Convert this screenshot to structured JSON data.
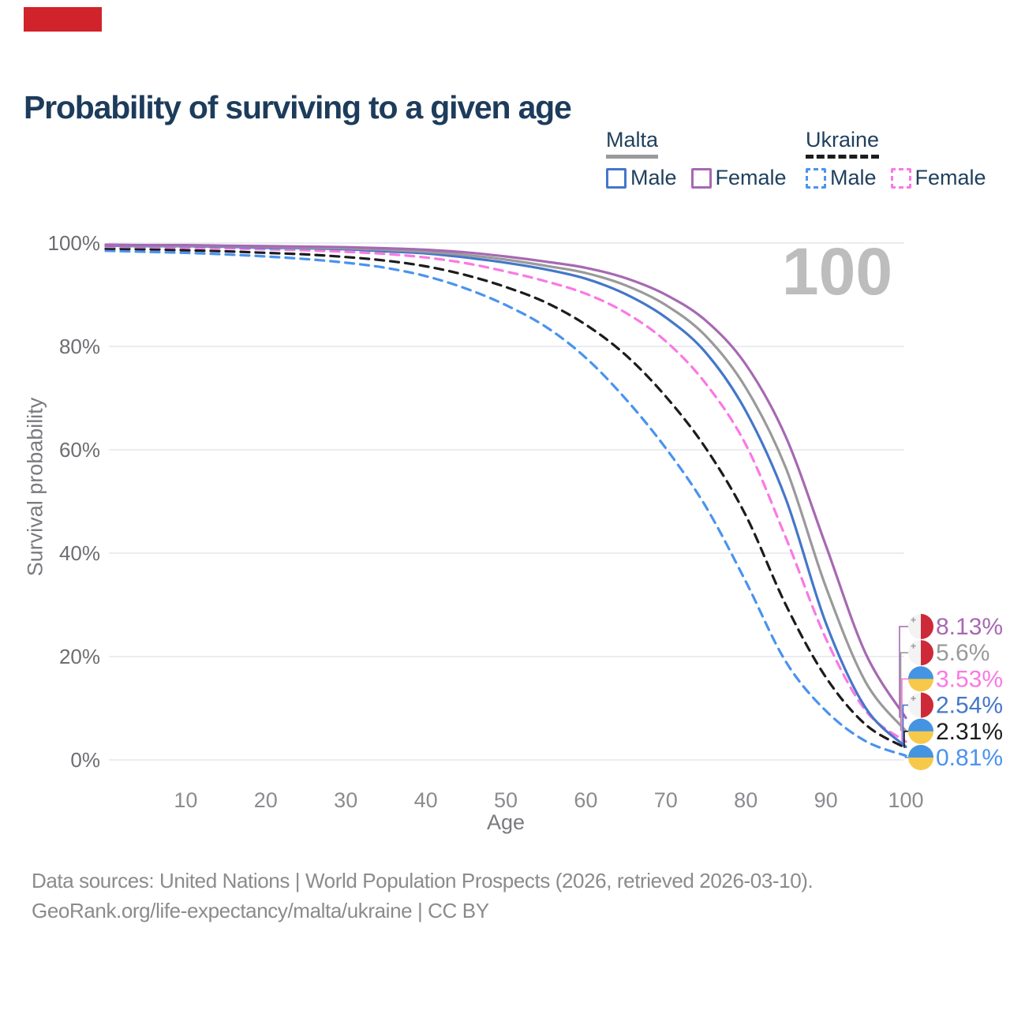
{
  "banner": {
    "color": "#d0232b"
  },
  "title": "Probability of surviving to a given age",
  "legend": {
    "groups": [
      {
        "country": "Malta",
        "line_style": "solid",
        "underline_color": "#9a9a9a",
        "items": [
          {
            "label": "Male",
            "color": "#4477c9",
            "dashed": false
          },
          {
            "label": "Female",
            "color": "#a669b2",
            "dashed": false
          }
        ]
      },
      {
        "country": "Ukraine",
        "line_style": "dashed",
        "underline_color": "#1c1c1c",
        "items": [
          {
            "label": "Male",
            "color": "#4a93ef",
            "dashed": true
          },
          {
            "label": "Female",
            "color": "#fb78e3",
            "dashed": true
          }
        ]
      }
    ]
  },
  "flags": {
    "malta": {
      "left": "#f3f3f3",
      "right": "#ce2939",
      "cross": "#a0a0a0"
    },
    "ukraine": {
      "top": "#4494e4",
      "bottom": "#f6c94a"
    }
  },
  "chart_data": {
    "type": "line",
    "title": "Probability of surviving to a given age",
    "xlabel": "Age",
    "ylabel": "Survival probability",
    "xlim": [
      0,
      100
    ],
    "ylim": [
      0,
      100
    ],
    "grid": true,
    "watermark": "100",
    "x_ticks": [
      10,
      20,
      30,
      40,
      50,
      60,
      70,
      80,
      90,
      100
    ],
    "y_ticks": [
      "0%",
      "20%",
      "40%",
      "60%",
      "80%",
      "100%"
    ],
    "x": [
      0,
      5,
      10,
      15,
      20,
      25,
      30,
      35,
      40,
      45,
      50,
      55,
      60,
      65,
      70,
      75,
      80,
      85,
      90,
      95,
      100
    ],
    "series": [
      {
        "name": "Ukraine Male",
        "country": "Ukraine",
        "sex": "Male",
        "color": "#4a93ef",
        "dashed": true,
        "flag": "ukraine",
        "end_label": "0.81%",
        "values": [
          98.5,
          98.3,
          98.1,
          97.8,
          97.4,
          96.9,
          96.2,
          95.2,
          93.6,
          91.2,
          88.0,
          83.8,
          77.8,
          69.8,
          60.3,
          49.0,
          34.5,
          19.0,
          9.5,
          3.6,
          0.81
        ]
      },
      {
        "name": "Ukraine Both sexes",
        "country": "Ukraine",
        "sex": "Both",
        "color": "#1c1c1c",
        "dashed": true,
        "flag": "ukraine",
        "end_label": "2.31%",
        "values": [
          98.9,
          98.8,
          98.6,
          98.4,
          98.1,
          97.8,
          97.3,
          96.6,
          95.5,
          93.8,
          91.5,
          88.5,
          84.2,
          78.3,
          70.3,
          60.3,
          47.3,
          30.0,
          16.0,
          6.8,
          2.31
        ]
      },
      {
        "name": "Ukraine Female",
        "country": "Ukraine",
        "sex": "Female",
        "color": "#fb78e3",
        "dashed": true,
        "flag": "ukraine",
        "end_label": "3.53%",
        "values": [
          99.3,
          99.2,
          99.1,
          99.0,
          98.8,
          98.6,
          98.3,
          97.9,
          97.2,
          96.1,
          94.5,
          92.6,
          90.2,
          86.5,
          81.0,
          72.8,
          61.0,
          43.0,
          23.5,
          9.5,
          3.53
        ]
      },
      {
        "name": "Malta Male",
        "country": "Malta",
        "sex": "Male",
        "color": "#4477c9",
        "dashed": false,
        "flag": "malta",
        "end_label": "2.54%",
        "values": [
          99.5,
          99.4,
          99.4,
          99.3,
          99.1,
          99.0,
          98.8,
          98.4,
          98.0,
          97.2,
          96.2,
          94.9,
          93.1,
          90.1,
          85.6,
          78.8,
          67.5,
          50.5,
          26.5,
          10.0,
          2.54
        ]
      },
      {
        "name": "Malta Both sexes",
        "country": "Malta",
        "sex": "Both",
        "color": "#9a9a9a",
        "dashed": false,
        "flag": "malta",
        "end_label": "5.6%",
        "values": [
          99.6,
          99.5,
          99.5,
          99.4,
          99.3,
          99.1,
          99.0,
          98.7,
          98.3,
          97.7,
          96.8,
          95.6,
          94.2,
          91.8,
          88.0,
          82.0,
          72.0,
          56.5,
          33.5,
          15.0,
          5.6
        ]
      },
      {
        "name": "Malta Female",
        "country": "Malta",
        "sex": "Female",
        "color": "#a669b2",
        "dashed": false,
        "flag": "malta",
        "end_label": "8.13%",
        "values": [
          99.7,
          99.6,
          99.6,
          99.5,
          99.4,
          99.3,
          99.2,
          99.0,
          98.7,
          98.2,
          97.4,
          96.4,
          95.2,
          93.2,
          90.0,
          85.0,
          76.5,
          62.5,
          41.5,
          20.5,
          8.13
        ]
      }
    ],
    "legend_position": "top-right",
    "colors": {
      "grid": "#ececf1",
      "watermark": "#bdbdbd",
      "axis_text": "#8b8b90",
      "y_tick_text": "#6d6d72"
    }
  },
  "footer": {
    "line1": "Data sources: United Nations | World Population Prospects (2026, retrieved 2026-03-10).",
    "line2": "GeoRank.org/life-expectancy/malta/ukraine | CC BY"
  }
}
